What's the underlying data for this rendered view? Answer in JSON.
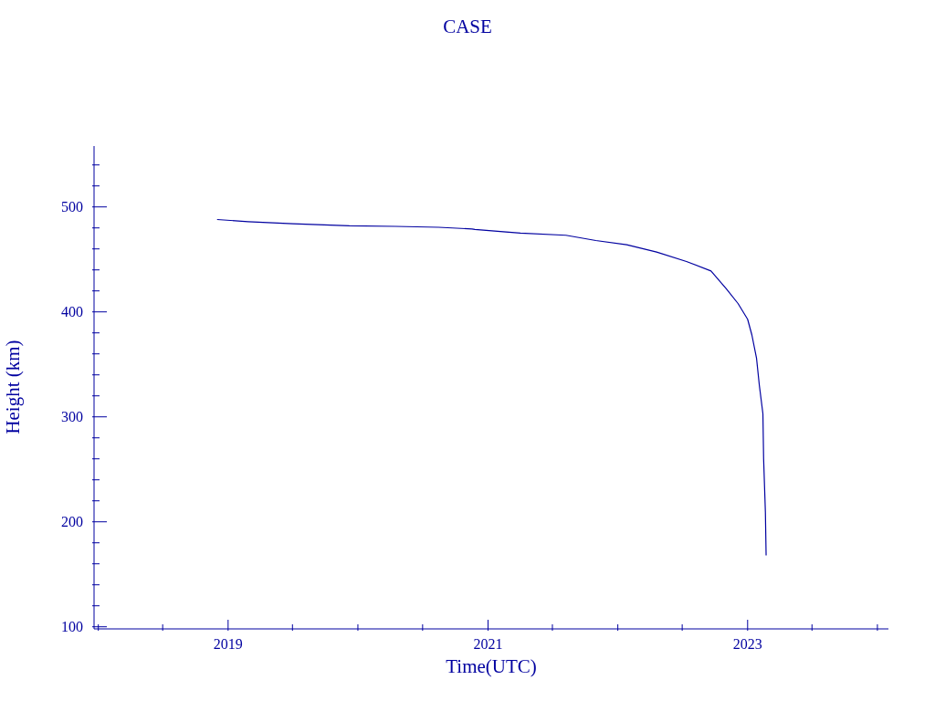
{
  "chart_data": {
    "type": "line",
    "title": "CASE",
    "xlabel": "Time(UTC)",
    "ylabel": "Height (km)",
    "x": [
      "2018-12-01",
      "2019-02-26",
      "2019-07-02",
      "2019-12-08",
      "2020-04-15",
      "2020-08-15",
      "2020-11-17",
      "2020-11-25",
      "2021-04-02",
      "2021-08-08",
      "2021-10-31",
      "2022-01-26",
      "2022-04-20",
      "2022-07-13",
      "2022-09-20",
      "2022-11-02",
      "2022-12-05",
      "2023-01-01",
      "2023-01-13",
      "2023-01-26",
      "2023-02-03",
      "2023-02-13",
      "2023-02-15",
      "2023-02-20",
      "2023-02-22"
    ],
    "series": [
      {
        "color": "#0000a0",
        "values": [
          488,
          486,
          484,
          482,
          481.5,
          480.6,
          479,
          478.5,
          475,
          473,
          468,
          464,
          457,
          448,
          439,
          422,
          408,
          393,
          378,
          356,
          330,
          303,
          260,
          209,
          168
        ]
      }
    ],
    "xlim": [
      "2017-12-20",
      "2024-02-01"
    ],
    "xticks": [
      {
        "value": "2018-01-01",
        "label": null
      },
      {
        "value": "2018-07-01",
        "label": null
      },
      {
        "value": "2019-01-01",
        "label": "2019"
      },
      {
        "value": "2019-07-01",
        "label": null
      },
      {
        "value": "2020-01-01",
        "label": null
      },
      {
        "value": "2020-07-01",
        "label": null
      },
      {
        "value": "2021-01-01",
        "label": "2021"
      },
      {
        "value": "2021-07-01",
        "label": null
      },
      {
        "value": "2022-01-01",
        "label": null
      },
      {
        "value": "2022-07-01",
        "label": null
      },
      {
        "value": "2023-01-01",
        "label": "2023"
      },
      {
        "value": "2023-07-01",
        "label": null
      },
      {
        "value": "2024-01-01",
        "label": null
      }
    ],
    "ylim": [
      98,
      558
    ],
    "yticks": [
      100,
      {
        "value": 120,
        "label": null
      },
      {
        "value": 140,
        "label": null
      },
      {
        "value": 160,
        "label": null
      },
      {
        "value": 180,
        "label": null
      },
      200,
      {
        "value": 220,
        "label": null
      },
      {
        "value": 240,
        "label": null
      },
      {
        "value": 260,
        "label": null
      },
      {
        "value": 280,
        "label": null
      },
      300,
      {
        "value": 320,
        "label": null
      },
      {
        "value": 340,
        "label": null
      },
      {
        "value": 360,
        "label": null
      },
      {
        "value": 380,
        "label": null
      },
      400,
      {
        "value": 420,
        "label": null
      },
      {
        "value": 440,
        "label": null
      },
      {
        "value": 460,
        "label": null
      },
      {
        "value": 480,
        "label": null
      },
      500,
      {
        "value": 520,
        "label": null
      },
      {
        "value": 540,
        "label": null
      }
    ],
    "grid": false,
    "legend": false,
    "marker": "none",
    "line_style": "solid"
  }
}
